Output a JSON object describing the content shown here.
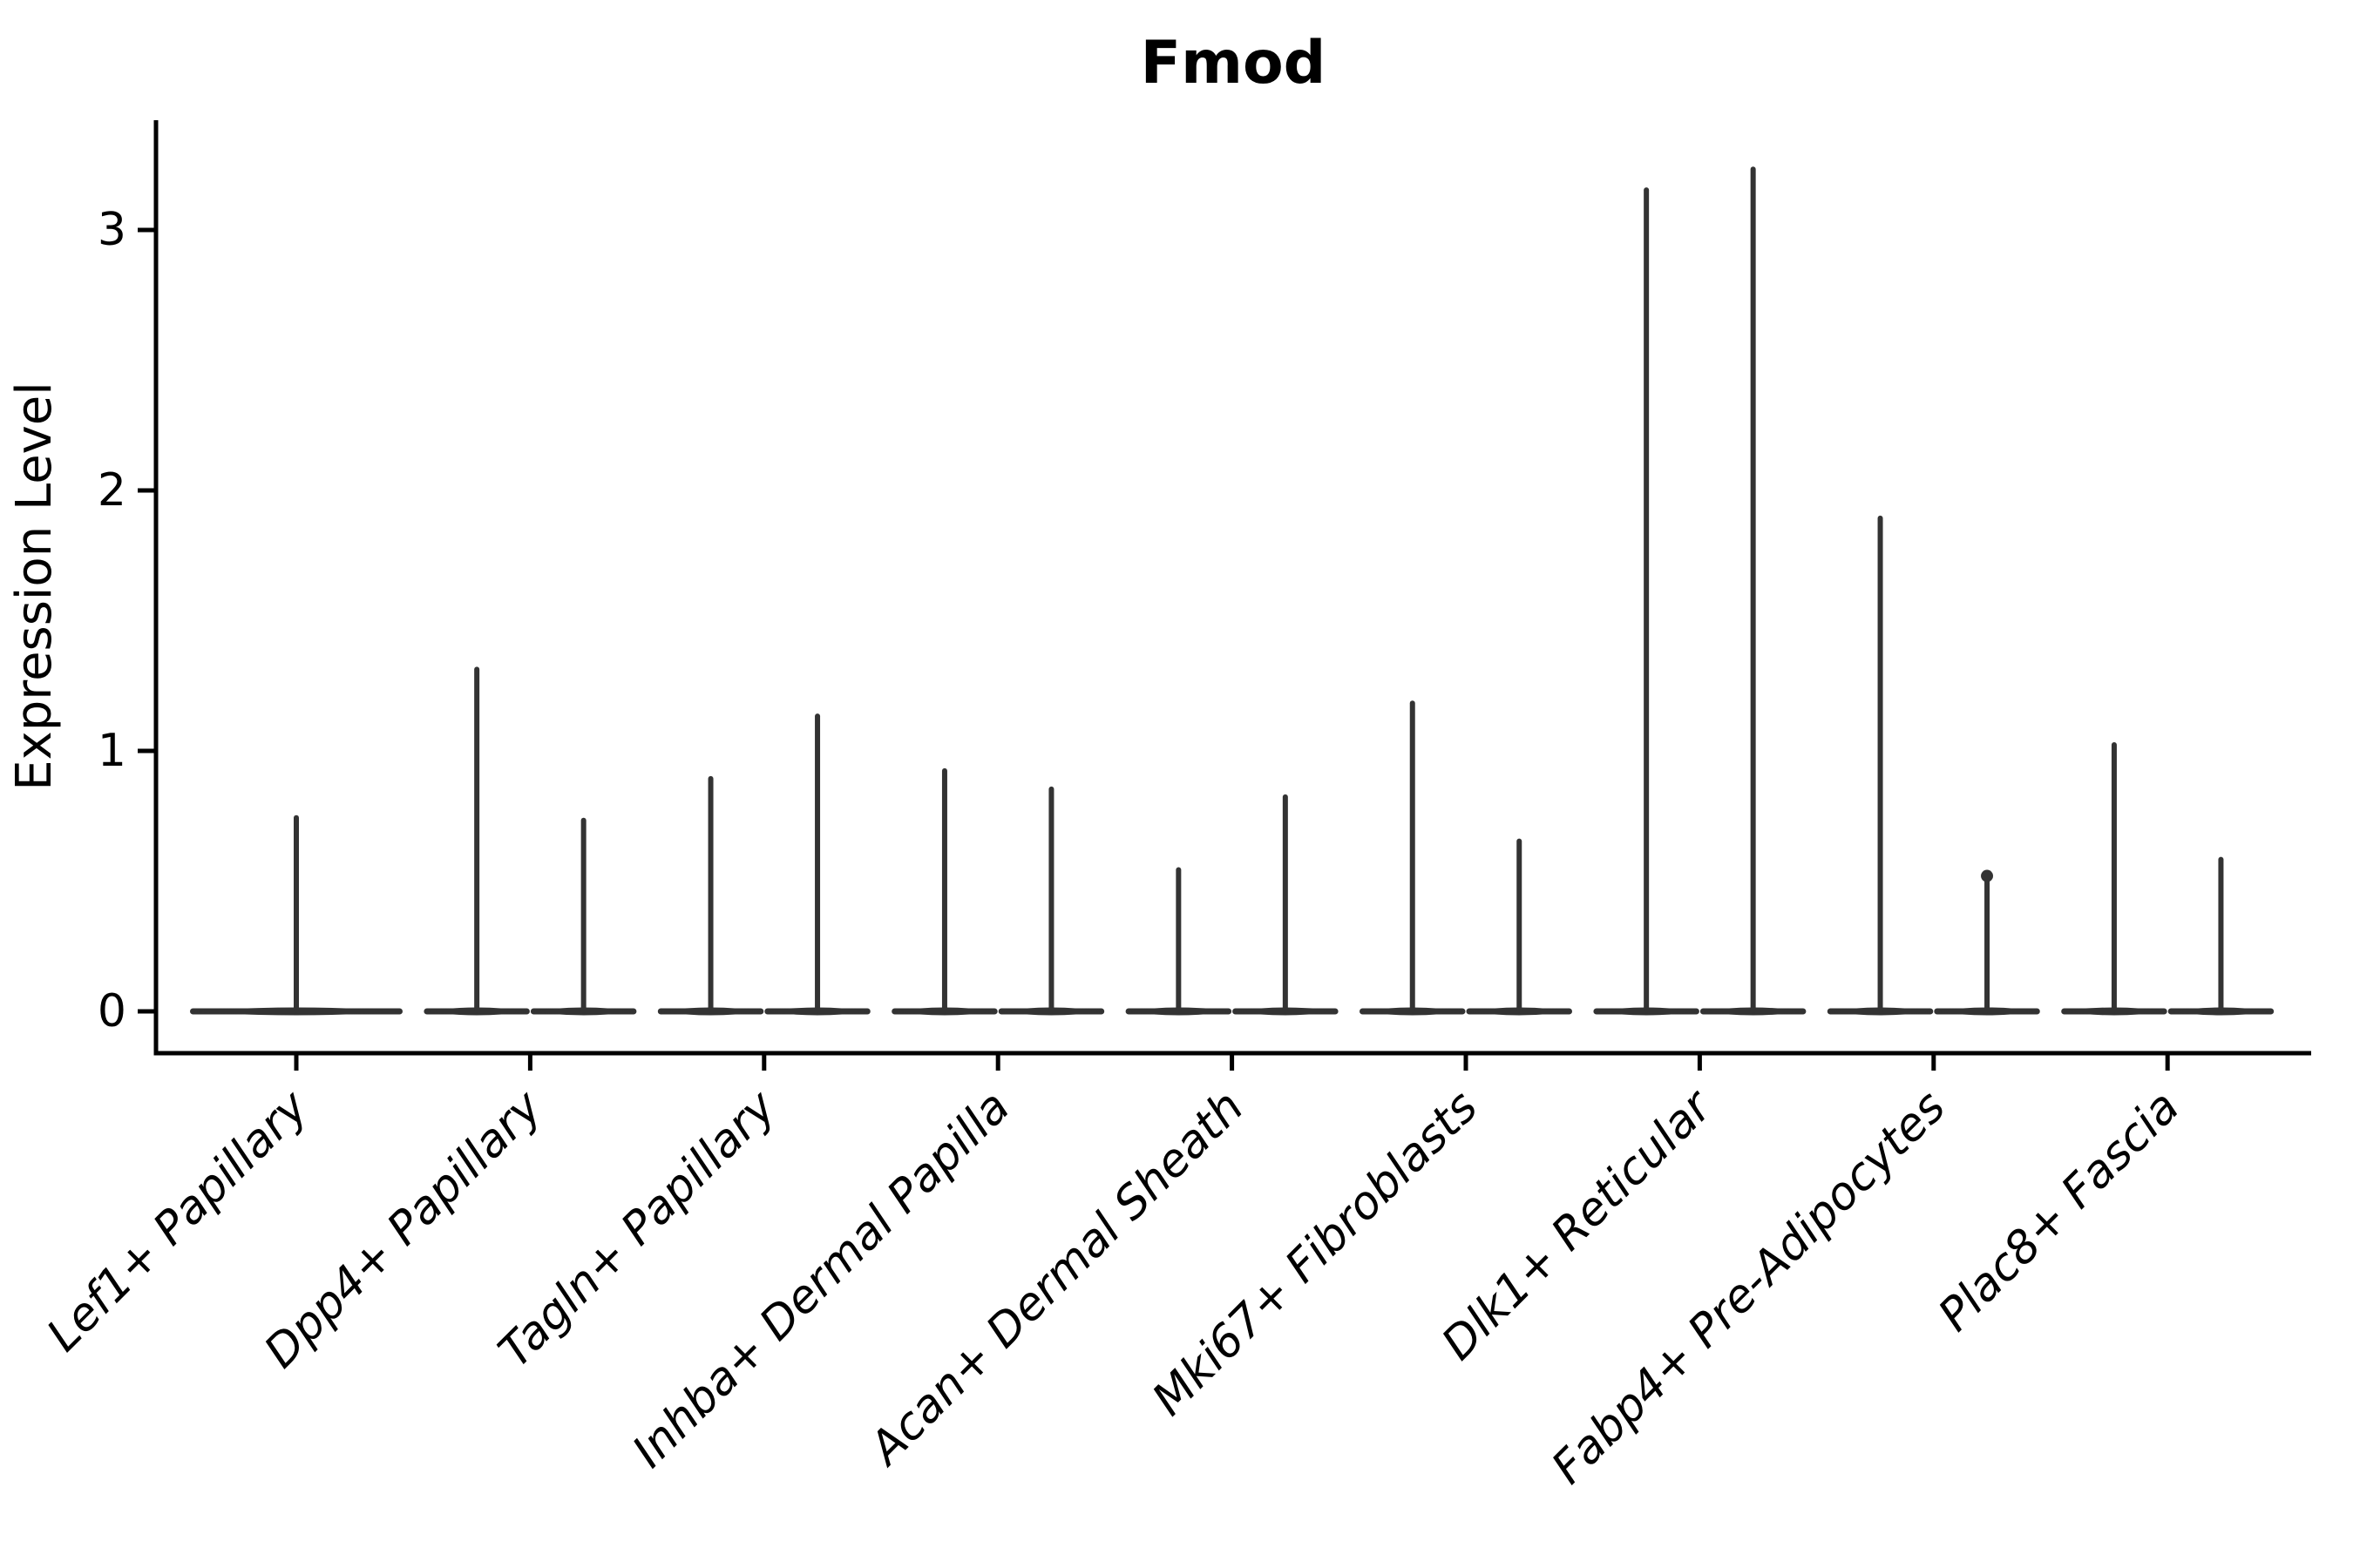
{
  "chart_data": {
    "type": "violin",
    "title": "Fmod",
    "ylabel": "Expression Level",
    "yticks": [
      0,
      1,
      2,
      3
    ],
    "yticklabels": [
      "0",
      "1",
      "2",
      "3"
    ],
    "ylim": [
      -0.16,
      3.42
    ],
    "violin_floor": 0,
    "violin_color": "#333333",
    "axis_color": "#000000",
    "categories": [
      "Lef1+ Papillary",
      "Dpp4+ Papillary",
      "Tagln+ Papillary",
      "Inhba+ Dermal Papilla",
      "Acan+ Dermal Sheath",
      "Mki67+ Fibroblasts",
      "Dlk1+ Reticular",
      "Fabp4+ Pre-Adipocytes",
      "Plac8+ Fascia"
    ],
    "series": [
      {
        "category": "Lef1+ Papillary",
        "violins": [
          {
            "pos": "center",
            "max": 0.75
          }
        ]
      },
      {
        "category": "Dpp4+ Papillary",
        "violins": [
          {
            "pos": "left",
            "max": 1.32
          },
          {
            "pos": "right",
            "max": 0.74
          }
        ]
      },
      {
        "category": "Tagln+ Papillary",
        "violins": [
          {
            "pos": "left",
            "max": 0.9
          },
          {
            "pos": "right",
            "max": 1.14
          }
        ]
      },
      {
        "category": "Inhba+ Dermal Papilla",
        "violins": [
          {
            "pos": "left",
            "max": 0.93
          },
          {
            "pos": "right",
            "max": 0.86
          }
        ]
      },
      {
        "category": "Acan+ Dermal Sheath",
        "violins": [
          {
            "pos": "left",
            "max": 0.55
          },
          {
            "pos": "right",
            "max": 0.83
          }
        ]
      },
      {
        "category": "Mki67+ Fibroblasts",
        "violins": [
          {
            "pos": "left",
            "max": 1.19
          },
          {
            "pos": "right",
            "max": 0.66
          }
        ]
      },
      {
        "category": "Dlk1+ Reticular",
        "violins": [
          {
            "pos": "left",
            "max": 3.16
          },
          {
            "pos": "right",
            "max": 3.24
          }
        ]
      },
      {
        "category": "Fabp4+ Pre-Adipocytes",
        "violins": [
          {
            "pos": "left",
            "max": 1.9
          },
          {
            "pos": "right",
            "max": 0.54,
            "tip_dot": true
          }
        ]
      },
      {
        "category": "Plac8+ Fascia",
        "violins": [
          {
            "pos": "left",
            "max": 1.03
          },
          {
            "pos": "right",
            "max": 0.59
          }
        ]
      }
    ]
  }
}
